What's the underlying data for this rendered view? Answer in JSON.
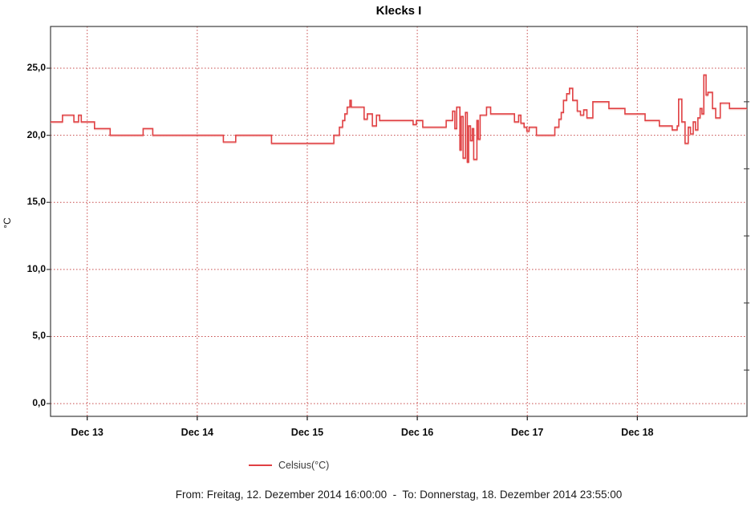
{
  "chart_data": {
    "type": "line",
    "title": "Klecks I",
    "ylabel": "°C",
    "footer": "From: Freitag, 12. Dezember 2014 16:00:00  -  To: Donnerstag, 18. Dezember 2014 23:55:00",
    "x_unit": "hours since 2014-12-12 16:00",
    "x_range": [
      0,
      151.92
    ],
    "y_range": [
      -0.95,
      28.11
    ],
    "grid": true,
    "legend_position": "bottom",
    "colors": {
      "series": "#e04043",
      "series_halo": "#f2b3af",
      "grid": "#c64a4a",
      "axis": "#3c3c3c"
    },
    "y_ticks": [
      {
        "value": 0,
        "label": "0,0"
      },
      {
        "value": 5,
        "label": "5,0"
      },
      {
        "value": 10,
        "label": "10,0"
      },
      {
        "value": 15,
        "label": "15,0"
      },
      {
        "value": 20,
        "label": "20,0"
      },
      {
        "value": 25,
        "label": "25,0"
      }
    ],
    "y_minor_ticks": [
      2.5,
      7.5,
      12.5,
      17.5,
      22.5
    ],
    "x_ticks": [
      {
        "value": 8,
        "label": "Dec 13"
      },
      {
        "value": 32,
        "label": "Dec 14"
      },
      {
        "value": 56,
        "label": "Dec 15"
      },
      {
        "value": 80,
        "label": "Dec 16"
      },
      {
        "value": 104,
        "label": "Dec 17"
      },
      {
        "value": 128,
        "label": "Dec 18"
      }
    ],
    "series": [
      {
        "name": "Celsius(°C)",
        "step": true,
        "points": [
          [
            0.0,
            21.0
          ],
          [
            2.6,
            21.5
          ],
          [
            5.1,
            21.0
          ],
          [
            6.1,
            21.5
          ],
          [
            6.7,
            21.0
          ],
          [
            9.6,
            20.5
          ],
          [
            13.0,
            20.0
          ],
          [
            20.2,
            20.5
          ],
          [
            22.3,
            20.0
          ],
          [
            37.7,
            19.5
          ],
          [
            40.4,
            20.0
          ],
          [
            48.2,
            19.4
          ],
          [
            61.8,
            20.0
          ],
          [
            63.0,
            20.6
          ],
          [
            63.7,
            21.1
          ],
          [
            64.2,
            21.6
          ],
          [
            64.7,
            22.1
          ],
          [
            65.3,
            22.6
          ],
          [
            65.6,
            22.1
          ],
          [
            68.4,
            21.2
          ],
          [
            69.1,
            21.6
          ],
          [
            70.2,
            20.7
          ],
          [
            71.1,
            21.5
          ],
          [
            71.8,
            21.1
          ],
          [
            79.1,
            20.8
          ],
          [
            79.8,
            21.1
          ],
          [
            81.2,
            20.6
          ],
          [
            86.3,
            21.1
          ],
          [
            87.7,
            21.8
          ],
          [
            88.2,
            20.5
          ],
          [
            88.6,
            22.1
          ],
          [
            89.3,
            18.9
          ],
          [
            89.6,
            21.4
          ],
          [
            90.0,
            18.3
          ],
          [
            90.5,
            21.7
          ],
          [
            90.9,
            18.0
          ],
          [
            91.2,
            20.7
          ],
          [
            91.6,
            19.6
          ],
          [
            92.0,
            20.5
          ],
          [
            92.3,
            18.2
          ],
          [
            93.0,
            21.1
          ],
          [
            93.3,
            19.7
          ],
          [
            93.7,
            21.5
          ],
          [
            95.1,
            22.1
          ],
          [
            96.0,
            21.6
          ],
          [
            101.2,
            21.0
          ],
          [
            102.1,
            21.5
          ],
          [
            102.6,
            20.9
          ],
          [
            103.3,
            20.6
          ],
          [
            103.9,
            20.3
          ],
          [
            104.4,
            20.6
          ],
          [
            106.0,
            20.0
          ],
          [
            110.0,
            20.6
          ],
          [
            110.9,
            21.2
          ],
          [
            111.4,
            21.7
          ],
          [
            111.9,
            22.6
          ],
          [
            112.6,
            23.1
          ],
          [
            113.2,
            23.5
          ],
          [
            113.9,
            22.6
          ],
          [
            114.9,
            21.8
          ],
          [
            115.6,
            21.5
          ],
          [
            116.3,
            21.9
          ],
          [
            117.0,
            21.3
          ],
          [
            118.3,
            22.5
          ],
          [
            121.8,
            22.0
          ],
          [
            125.3,
            21.6
          ],
          [
            129.7,
            21.1
          ],
          [
            132.8,
            20.7
          ],
          [
            135.6,
            20.4
          ],
          [
            136.7,
            20.7
          ],
          [
            137.0,
            22.7
          ],
          [
            137.7,
            21.0
          ],
          [
            138.4,
            19.4
          ],
          [
            139.1,
            20.6
          ],
          [
            139.6,
            20.1
          ],
          [
            140.2,
            21.0
          ],
          [
            140.7,
            20.4
          ],
          [
            141.2,
            21.3
          ],
          [
            141.7,
            22.0
          ],
          [
            142.1,
            21.6
          ],
          [
            142.5,
            24.5
          ],
          [
            143.0,
            23.0
          ],
          [
            143.4,
            23.2
          ],
          [
            144.4,
            22.0
          ],
          [
            145.1,
            21.3
          ],
          [
            146.1,
            22.4
          ],
          [
            148.1,
            22.0
          ],
          [
            151.9,
            22.0
          ]
        ]
      }
    ]
  }
}
